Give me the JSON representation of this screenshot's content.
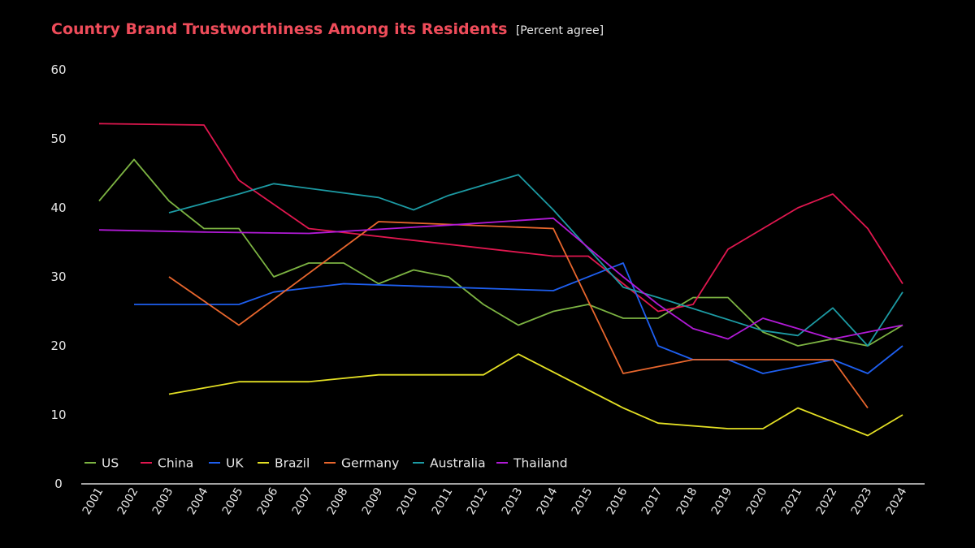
{
  "colors": {
    "background": "#000000",
    "title": "#ef4c5a",
    "text": "#e6e6e6",
    "axis": "#d9d9d9"
  },
  "chart_data": {
    "type": "line",
    "title": "Country Brand Trustworthiness Among its Residents",
    "subtitle": "[Percent agree]",
    "xlabel": "",
    "ylabel": "",
    "ylim": [
      0,
      60
    ],
    "yticks": [
      0,
      10,
      20,
      30,
      40,
      50,
      60
    ],
    "grid": false,
    "legend_position": "bottom-left",
    "x": [
      "2001",
      "2002",
      "2003",
      "2004",
      "2005",
      "2006",
      "2007",
      "2008",
      "2009",
      "2010",
      "2011",
      "2012",
      "2013",
      "2014",
      "2015",
      "2016",
      "2017",
      "2018",
      "2019",
      "2020",
      "2021",
      "2022",
      "2023",
      "2024"
    ],
    "series": [
      {
        "name": "US",
        "color": "#7cb342",
        "values": [
          41,
          47,
          41,
          37,
          37,
          30,
          32,
          32,
          29,
          31,
          30,
          26,
          23,
          25,
          26,
          24,
          24,
          27,
          27,
          22,
          20,
          21,
          20,
          23
        ]
      },
      {
        "name": "China",
        "color": "#e0174f",
        "values": [
          52.2,
          null,
          null,
          52,
          44,
          null,
          37,
          null,
          null,
          null,
          null,
          null,
          null,
          33,
          33,
          29,
          25,
          26,
          34,
          null,
          40,
          42,
          37,
          29
        ]
      },
      {
        "name": "UK",
        "color": "#1e5ff0",
        "values": [
          null,
          26,
          26,
          26,
          26,
          27.8,
          28.4,
          29,
          null,
          null,
          null,
          null,
          null,
          28,
          null,
          32,
          20,
          18,
          18,
          16,
          17,
          18,
          16,
          20
        ]
      },
      {
        "name": "Brazil",
        "color": "#e3df24",
        "values": [
          null,
          null,
          13,
          13.9,
          14.8,
          14.8,
          14.8,
          null,
          15.8,
          15.8,
          15.8,
          15.8,
          18.8,
          null,
          null,
          11,
          8.8,
          null,
          8,
          8,
          11,
          null,
          7,
          10
        ]
      },
      {
        "name": "Germany",
        "color": "#e8662d",
        "values": [
          null,
          null,
          30,
          null,
          23,
          null,
          null,
          null,
          38,
          null,
          null,
          null,
          null,
          37,
          null,
          16,
          null,
          18,
          18,
          18,
          18,
          18,
          11,
          null
        ]
      },
      {
        "name": "Australia",
        "color": "#1c9aa3",
        "values": [
          null,
          null,
          39.3,
          null,
          42,
          43.5,
          null,
          null,
          41.5,
          39.7,
          41.8,
          null,
          44.8,
          39.7,
          null,
          28.5,
          27,
          null,
          null,
          22.2,
          21.5,
          25.5,
          20,
          27.8
        ]
      },
      {
        "name": "Thailand",
        "color": "#b11ad6",
        "values": [
          36.8,
          null,
          null,
          36.5,
          null,
          null,
          36.3,
          null,
          null,
          null,
          37.5,
          null,
          null,
          38.5,
          null,
          30,
          26,
          22.5,
          21,
          24,
          22.5,
          21,
          22,
          23
        ]
      }
    ]
  }
}
